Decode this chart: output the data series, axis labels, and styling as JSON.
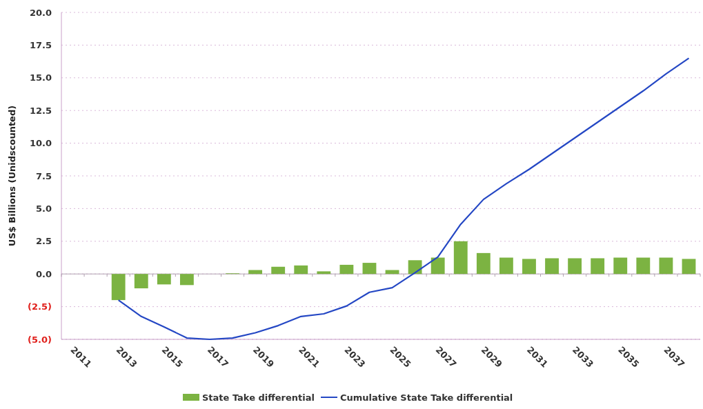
{
  "chart_data": {
    "type": "bar",
    "ylabel": "US$ Billions (Unidscounted)",
    "categories": [
      "2011",
      null,
      "2013",
      null,
      "2015",
      null,
      "2017",
      null,
      "2019",
      null,
      "2021",
      null,
      "2023",
      null,
      "2025",
      null,
      "2027",
      null,
      "2029",
      null,
      "2031",
      null,
      "2033",
      null,
      "2035",
      null,
      "2037",
      null
    ],
    "series": [
      {
        "name": "State Take differential",
        "color": "#7cb342",
        "values": [
          null,
          null,
          -2.0,
          -1.1,
          -0.8,
          -0.85,
          null,
          0.05,
          0.3,
          0.55,
          0.65,
          0.2,
          0.7,
          0.85,
          0.3,
          1.05,
          1.25,
          2.5,
          1.6,
          1.25,
          1.15,
          1.2,
          1.2,
          1.2,
          1.25,
          1.25,
          1.25,
          1.15
        ]
      },
      {
        "name": "Cumulative State Take differential",
        "type": "line",
        "color": "#2447c4",
        "values": [
          null,
          null,
          -2.0,
          -3.25,
          -4.05,
          -4.9,
          -5.0,
          -4.9,
          -4.5,
          -3.95,
          -3.25,
          -3.05,
          -2.45,
          -1.4,
          -1.05,
          0.1,
          1.3,
          3.8,
          5.7,
          6.9,
          8.0,
          9.2,
          10.4,
          11.6,
          12.8,
          14.0,
          15.3,
          16.5
        ]
      }
    ],
    "ylim": [
      -5,
      20
    ],
    "yticks": [
      {
        "value": -5,
        "label": "(5.0)"
      },
      {
        "value": -2.5,
        "label": "(2.5)"
      },
      {
        "value": 0,
        "label": "0.0"
      },
      {
        "value": 2.5,
        "label": "2.5"
      },
      {
        "value": 5,
        "label": "5.0"
      },
      {
        "value": 7.5,
        "label": "7.5"
      },
      {
        "value": 10,
        "label": "10.0"
      },
      {
        "value": 12.5,
        "label": "12.5"
      },
      {
        "value": 15,
        "label": "15.0"
      },
      {
        "value": 17.5,
        "label": "17.5"
      },
      {
        "value": 20,
        "label": "20.0"
      }
    ],
    "grid": "y",
    "legend": "bottom",
    "marker": "none",
    "line_style": "solid"
  }
}
